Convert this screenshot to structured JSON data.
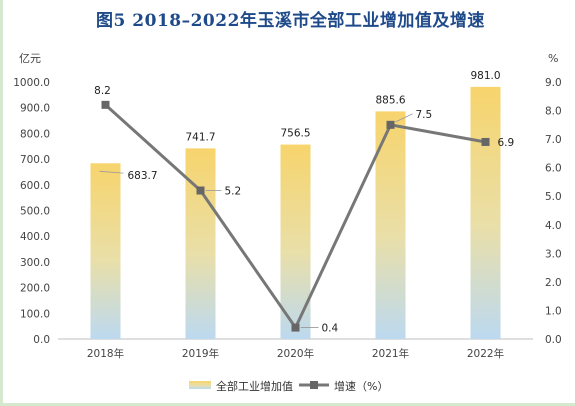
{
  "title": "图5   2018–2022年玉溪市全部工业增加值及增速",
  "colors": {
    "bar_top": "#f7d46c",
    "bar_bottom": "#bcd9f0",
    "line": "#777777",
    "marker": "#666666",
    "axis": "#bfbfbf",
    "title": "#1f4a8a"
  },
  "chart_data": {
    "type": "bar",
    "categories": [
      "2018年",
      "2019年",
      "2020年",
      "2021年",
      "2022年"
    ],
    "series": [
      {
        "name": "全部工业增加值",
        "type": "bar",
        "axis": "left",
        "values": [
          683.7,
          741.7,
          756.5,
          885.6,
          981.0
        ],
        "labels": [
          "683.7",
          "741.7",
          "756.5",
          "885.6",
          "981.0"
        ]
      },
      {
        "name": "增速（%）",
        "type": "line",
        "axis": "right",
        "values": [
          8.2,
          5.2,
          0.4,
          7.5,
          6.9
        ],
        "labels": [
          "8.2",
          "5.2",
          "0.4",
          "7.5",
          "6.9"
        ]
      }
    ],
    "y_left": {
      "unit": "亿元",
      "ylim": [
        0,
        1000
      ],
      "ticks": [
        "0.0",
        "100.0",
        "200.0",
        "300.0",
        "400.0",
        "500.0",
        "600.0",
        "700.0",
        "800.0",
        "900.0",
        "1000.0"
      ]
    },
    "y_right": {
      "unit": "%",
      "ylim": [
        0,
        9
      ],
      "ticks": [
        "0.0",
        "1.0",
        "2.0",
        "3.0",
        "4.0",
        "5.0",
        "6.0",
        "7.0",
        "8.0",
        "9.0"
      ]
    },
    "grid": false,
    "legend_position": "bottom"
  }
}
